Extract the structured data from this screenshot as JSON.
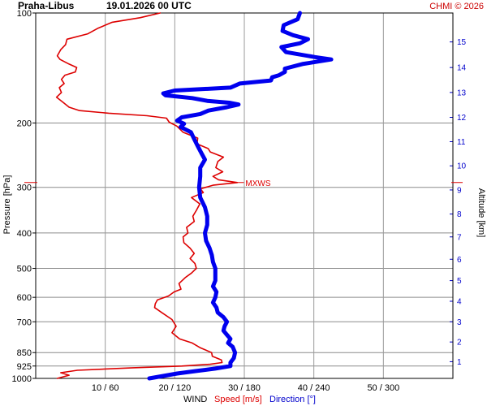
{
  "header": {
    "station": "Praha-Libus",
    "datetime": "19.01.2026 00 UTC",
    "credit": "CHMI © 2026"
  },
  "chart_data": {
    "type": "line",
    "title": "Praha-Libus   19.01.2026 00 UTC",
    "y_axis_left": {
      "label": "Pressure [hPa]",
      "scale": "log",
      "ticks": [
        100,
        200,
        300,
        400,
        500,
        600,
        700,
        850,
        925,
        1000
      ],
      "range": [
        100,
        1000
      ]
    },
    "y_axis_right": {
      "label": "Altitude [km]",
      "ticks": [
        1,
        2,
        3,
        4,
        5,
        6,
        7,
        8,
        9,
        10,
        11,
        12,
        13,
        14,
        15
      ],
      "tick_pressures": [
        900,
        795,
        700,
        615,
        540,
        472,
        410,
        355,
        305,
        262,
        225,
        193,
        165,
        141,
        120
      ]
    },
    "x_axis": {
      "label_prefix": "WIND",
      "speed_label": "Speed [m/s]",
      "direction_label": "Direction [°]",
      "tick_labels": [
        "10 / 60",
        "20 / 120",
        "30 / 180",
        "40 / 240",
        "50 / 300"
      ],
      "speed_ticks": [
        10,
        20,
        30,
        40,
        50
      ],
      "direction_ticks": [
        60,
        120,
        180,
        240,
        300
      ],
      "speed_range": [
        0,
        60
      ],
      "direction_range": [
        0,
        360
      ]
    },
    "annotation": {
      "text": "MXWS",
      "pressure": 291,
      "speed": 29
    },
    "series": [
      {
        "name": "Speed [m/s]",
        "color": "#dd0000",
        "unit": "m/s",
        "points": [
          [
            100,
            17.9
          ],
          [
            103,
            15
          ],
          [
            106,
            11
          ],
          [
            110,
            9
          ],
          [
            114,
            7.5
          ],
          [
            118,
            4.5
          ],
          [
            122,
            4.3
          ],
          [
            126,
            3.6
          ],
          [
            131,
            3.1
          ],
          [
            134,
            3.5
          ],
          [
            138,
            4.8
          ],
          [
            141,
            5.9
          ],
          [
            145,
            5.7
          ],
          [
            148,
            4.2
          ],
          [
            152,
            3.7
          ],
          [
            156,
            4.1
          ],
          [
            160,
            3.4
          ],
          [
            165,
            3.7
          ],
          [
            170,
            3.0
          ],
          [
            176,
            4.0
          ],
          [
            181,
            4.8
          ],
          [
            185,
            6.3
          ],
          [
            188,
            10.5
          ],
          [
            191,
            16
          ],
          [
            194,
            18.8
          ],
          [
            199,
            19.2
          ],
          [
            204,
            20.3
          ],
          [
            212,
            21.2
          ],
          [
            220,
            23.3
          ],
          [
            228,
            23.2
          ],
          [
            235,
            24.8
          ],
          [
            240,
            25.1
          ],
          [
            248,
            27
          ],
          [
            255,
            26.2
          ],
          [
            265,
            25.9
          ],
          [
            272,
            26.9
          ],
          [
            280,
            25.5
          ],
          [
            286,
            26.3
          ],
          [
            291,
            29.0
          ],
          [
            296,
            25.5
          ],
          [
            303,
            23.7
          ],
          [
            310,
            24.1
          ],
          [
            320,
            22.4
          ],
          [
            333,
            23.6
          ],
          [
            347,
            23.1
          ],
          [
            360,
            22.6
          ],
          [
            372,
            22.8
          ],
          [
            386,
            21.7
          ],
          [
            400,
            21.9
          ],
          [
            410,
            21.2
          ],
          [
            425,
            21.3
          ],
          [
            440,
            22.2
          ],
          [
            455,
            22.8
          ],
          [
            470,
            22.2
          ],
          [
            485,
            22.9
          ],
          [
            500,
            23.1
          ],
          [
            515,
            22.4
          ],
          [
            530,
            21.5
          ],
          [
            550,
            20.6
          ],
          [
            570,
            20.9
          ],
          [
            580,
            19.9
          ],
          [
            595,
            19.1
          ],
          [
            610,
            17.5
          ],
          [
            625,
            17.2
          ],
          [
            640,
            17.1
          ],
          [
            660,
            18.1
          ],
          [
            690,
            19.6
          ],
          [
            720,
            20.2
          ],
          [
            750,
            19.6
          ],
          [
            780,
            20.7
          ],
          [
            800,
            22.5
          ],
          [
            825,
            23.7
          ],
          [
            850,
            25.3
          ],
          [
            870,
            25.4
          ],
          [
            890,
            26.7
          ],
          [
            905,
            26.8
          ],
          [
            915,
            25.1
          ],
          [
            925,
            21
          ],
          [
            935,
            14
          ],
          [
            950,
            6
          ],
          [
            965,
            3.6
          ],
          [
            980,
            4.8
          ],
          [
            1000,
            3.1
          ]
        ]
      },
      {
        "name": "Direction [°]",
        "color": "#0000ee",
        "unit": "°",
        "points": [
          [
            100,
            228
          ],
          [
            104,
            226
          ],
          [
            108,
            214
          ],
          [
            112,
            213
          ],
          [
            115,
            222
          ],
          [
            118,
            235
          ],
          [
            121,
            228
          ],
          [
            124,
            212
          ],
          [
            128,
            216
          ],
          [
            132,
            241
          ],
          [
            134,
            255
          ],
          [
            138,
            230
          ],
          [
            142,
            215
          ],
          [
            145,
            215
          ],
          [
            148,
            210
          ],
          [
            150,
            204
          ],
          [
            153,
            203
          ],
          [
            156,
            176
          ],
          [
            160,
            168
          ],
          [
            163,
            120
          ],
          [
            166,
            110
          ],
          [
            168,
            112
          ],
          [
            171,
            135
          ],
          [
            174,
            148
          ],
          [
            176,
            167
          ],
          [
            178,
            175
          ],
          [
            181,
            165
          ],
          [
            185,
            149
          ],
          [
            189,
            142
          ],
          [
            193,
            126
          ],
          [
            197,
            122
          ],
          [
            201,
            128
          ],
          [
            205,
            125
          ],
          [
            212,
            134
          ],
          [
            222,
            137
          ],
          [
            232,
            140
          ],
          [
            242,
            143
          ],
          [
            252,
            146
          ],
          [
            265,
            142
          ],
          [
            280,
            142
          ],
          [
            300,
            141
          ],
          [
            320,
            142
          ],
          [
            340,
            146
          ],
          [
            360,
            148
          ],
          [
            380,
            148
          ],
          [
            400,
            146
          ],
          [
            420,
            147
          ],
          [
            440,
            150
          ],
          [
            460,
            152
          ],
          [
            480,
            153
          ],
          [
            500,
            155
          ],
          [
            520,
            155
          ],
          [
            540,
            155
          ],
          [
            560,
            153
          ],
          [
            580,
            156
          ],
          [
            600,
            155
          ],
          [
            620,
            153
          ],
          [
            640,
            156
          ],
          [
            660,
            157
          ],
          [
            680,
            162
          ],
          [
            700,
            165
          ],
          [
            720,
            163
          ],
          [
            740,
            162
          ],
          [
            760,
            165
          ],
          [
            780,
            168
          ],
          [
            800,
            166
          ],
          [
            820,
            170
          ],
          [
            850,
            172
          ],
          [
            880,
            171
          ],
          [
            905,
            168
          ],
          [
            925,
            168
          ],
          [
            940,
            155
          ],
          [
            955,
            138
          ],
          [
            970,
            122
          ],
          [
            985,
            110
          ],
          [
            1000,
            98
          ]
        ]
      }
    ]
  }
}
